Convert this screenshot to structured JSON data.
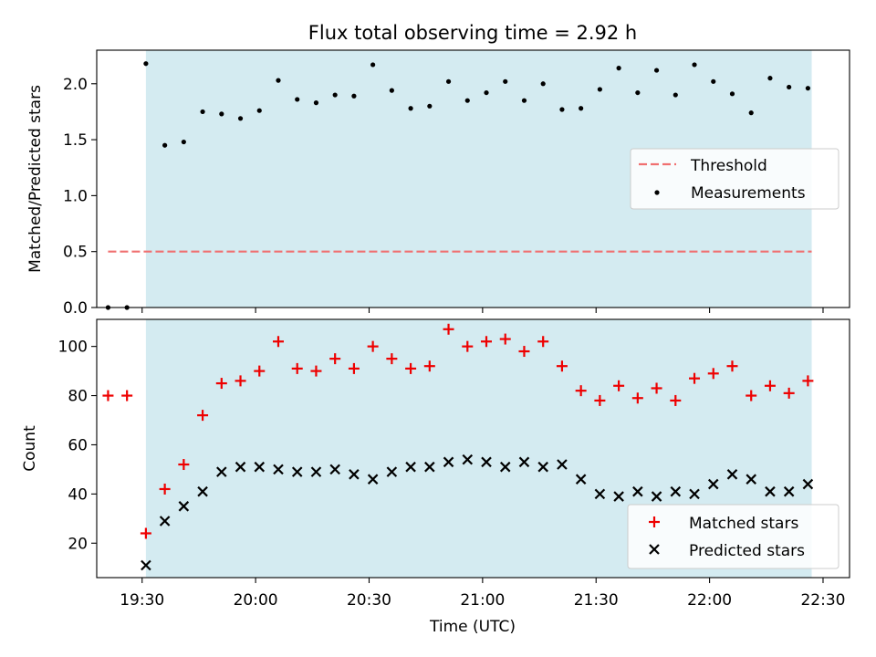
{
  "chart_data": [
    {
      "type": "scatter",
      "title": "Flux total observing time = 2.92 h",
      "ylabel": "Matched/Predicted stars",
      "xlabel": "",
      "ylim": [
        0,
        2.3
      ],
      "xlim": [
        "19:18",
        "22:37"
      ],
      "x_unit": "time (UTC)",
      "yticks": [
        0.0,
        0.5,
        1.0,
        1.5,
        2.0
      ],
      "ytick_labels": [
        "0.0",
        "0.5",
        "1.0",
        "1.5",
        "2.0"
      ],
      "shaded_region": {
        "x": [
          "19:31",
          "22:27"
        ],
        "color": "#d4ebf1"
      },
      "legend": {
        "position": "center-right",
        "entries": [
          "Threshold",
          "Measurements"
        ]
      },
      "threshold": {
        "name": "Threshold",
        "value": 0.5,
        "x": [
          "19:21",
          "22:27"
        ],
        "color": "#f07070",
        "style": "dashed"
      },
      "measurements": {
        "name": "Measurements",
        "color": "#000000",
        "x": [
          "19:21",
          "19:26",
          "19:31",
          "19:36",
          "19:41",
          "19:46",
          "19:51",
          "19:56",
          "20:01",
          "20:06",
          "20:11",
          "20:16",
          "20:21",
          "20:26",
          "20:31",
          "20:36",
          "20:41",
          "20:46",
          "20:51",
          "20:56",
          "21:01",
          "21:06",
          "21:11",
          "21:16",
          "21:21",
          "21:26",
          "21:31",
          "21:36",
          "21:41",
          "21:46",
          "21:51",
          "21:56",
          "22:01",
          "22:06",
          "22:11",
          "22:16",
          "22:21",
          "22:26"
        ],
        "y": [
          0.0,
          0.0,
          2.18,
          1.45,
          1.48,
          1.75,
          1.73,
          1.69,
          1.76,
          2.03,
          1.86,
          1.83,
          1.9,
          1.89,
          2.17,
          1.94,
          1.78,
          1.8,
          2.02,
          1.85,
          1.92,
          2.02,
          1.85,
          2.0,
          1.77,
          1.78,
          1.95,
          2.14,
          1.92,
          2.12,
          1.9,
          2.17,
          2.02,
          1.91,
          1.74,
          2.05,
          1.97,
          1.96
        ]
      }
    },
    {
      "type": "scatter",
      "title": "",
      "ylabel": "Count",
      "xlabel": "Time (UTC)",
      "ylim": [
        6,
        111
      ],
      "xlim": [
        "19:18",
        "22:37"
      ],
      "yticks": [
        20,
        40,
        60,
        80,
        100
      ],
      "ytick_labels": [
        "20",
        "40",
        "60",
        "80",
        "100"
      ],
      "xticks": [
        "19:30",
        "20:00",
        "20:30",
        "21:00",
        "21:30",
        "22:00",
        "22:30"
      ],
      "xtick_labels": [
        "19:30",
        "20:00",
        "20:30",
        "21:00",
        "21:30",
        "22:00",
        "22:30"
      ],
      "shaded_region": {
        "x": [
          "19:31",
          "22:27"
        ],
        "color": "#d4ebf1"
      },
      "legend": {
        "position": "lower-right",
        "entries": [
          "Matched stars",
          "Predicted stars"
        ]
      },
      "series": [
        {
          "name": "Matched stars",
          "marker": "+",
          "color": "#ee0000",
          "x": [
            "19:21",
            "19:26",
            "19:31",
            "19:36",
            "19:41",
            "19:46",
            "19:51",
            "19:56",
            "20:01",
            "20:06",
            "20:11",
            "20:16",
            "20:21",
            "20:26",
            "20:31",
            "20:36",
            "20:41",
            "20:46",
            "20:51",
            "20:56",
            "21:01",
            "21:06",
            "21:11",
            "21:16",
            "21:21",
            "21:26",
            "21:31",
            "21:36",
            "21:41",
            "21:46",
            "21:51",
            "21:56",
            "22:01",
            "22:06",
            "22:11",
            "22:16",
            "22:21",
            "22:26"
          ],
          "y": [
            80,
            80,
            24,
            42,
            52,
            72,
            85,
            86,
            90,
            102,
            91,
            90,
            95,
            91,
            100,
            95,
            91,
            92,
            107,
            100,
            102,
            103,
            98,
            102,
            92,
            82,
            78,
            84,
            79,
            83,
            78,
            87,
            89,
            92,
            80,
            84,
            81,
            86
          ]
        },
        {
          "name": "Predicted stars",
          "marker": "x",
          "color": "#000000",
          "x": [
            "19:31",
            "19:36",
            "19:41",
            "19:46",
            "19:51",
            "19:56",
            "20:01",
            "20:06",
            "20:11",
            "20:16",
            "20:21",
            "20:26",
            "20:31",
            "20:36",
            "20:41",
            "20:46",
            "20:51",
            "20:56",
            "21:01",
            "21:06",
            "21:11",
            "21:16",
            "21:21",
            "21:26",
            "21:31",
            "21:36",
            "21:41",
            "21:46",
            "21:51",
            "21:56",
            "22:01",
            "22:06",
            "22:11",
            "22:16",
            "22:21",
            "22:26"
          ],
          "y": [
            11,
            29,
            35,
            41,
            49,
            51,
            51,
            50,
            49,
            49,
            50,
            48,
            46,
            49,
            51,
            51,
            53,
            54,
            53,
            51,
            53,
            51,
            52,
            46,
            40,
            39,
            41,
            39,
            41,
            40,
            44,
            48,
            46,
            41,
            41,
            44
          ]
        }
      ]
    }
  ]
}
